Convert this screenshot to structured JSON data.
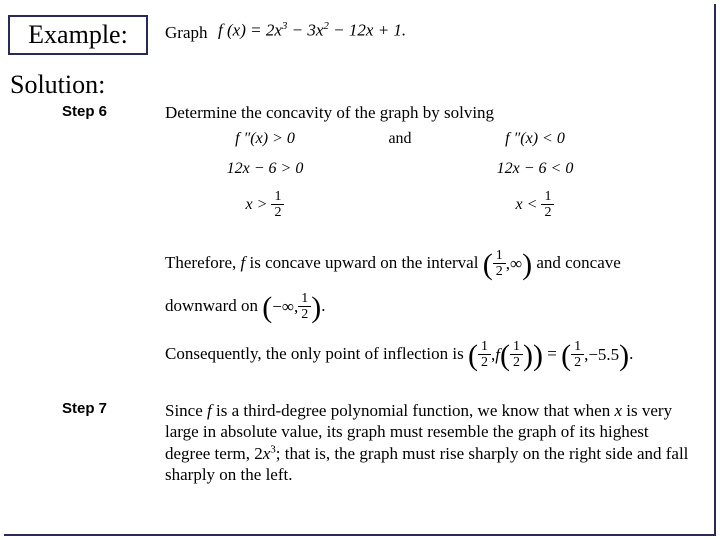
{
  "header": {
    "example_label": "Example:",
    "graph_word": "Graph",
    "formula": "f (x) = 2x³ − 3x² − 12x + 1."
  },
  "solution_label": "Solution:",
  "step6": {
    "label": "Step 6",
    "intro": "Determine the concavity of the graph by solving",
    "row1_left": "f ″(x) > 0",
    "row1_and": "and",
    "row1_right": "f ″(x) < 0",
    "row2_left": "12x − 6 > 0",
    "row2_right": "12x − 6 < 0",
    "row3_left_pre": "x > ",
    "row3_right_pre": "x < ",
    "frac_num": "1",
    "frac_den": "2",
    "therefore_pre": "Therefore, ",
    "therefore_f": "f",
    "therefore_mid": " is concave upward on the interval ",
    "therefore_post": " and concave",
    "downward_pre": "downward on ",
    "interval_up_left": "1",
    "interval_up_left_den": "2",
    "interval_up_right": "∞",
    "interval_down_left": "−∞",
    "consequently_pre": "Consequently, the only point of inflection is ",
    "inflection_y": "−5.5",
    "fhalf": "f"
  },
  "step7": {
    "label": "Step 7",
    "text_pre": "Since ",
    "f": "f",
    "text_mid1": " is a third-degree polynomial function, we know that when ",
    "x": "x",
    "text_mid2": " is very large in absolute value, its graph must resemble the graph of its highest degree term, ",
    "term": "2x³;",
    "text_post": " that is, the graph must rise sharply on the right side and fall sharply on the left."
  },
  "colors": {
    "border": "#2a2a5a",
    "text": "#000000",
    "background": "#ffffff"
  }
}
